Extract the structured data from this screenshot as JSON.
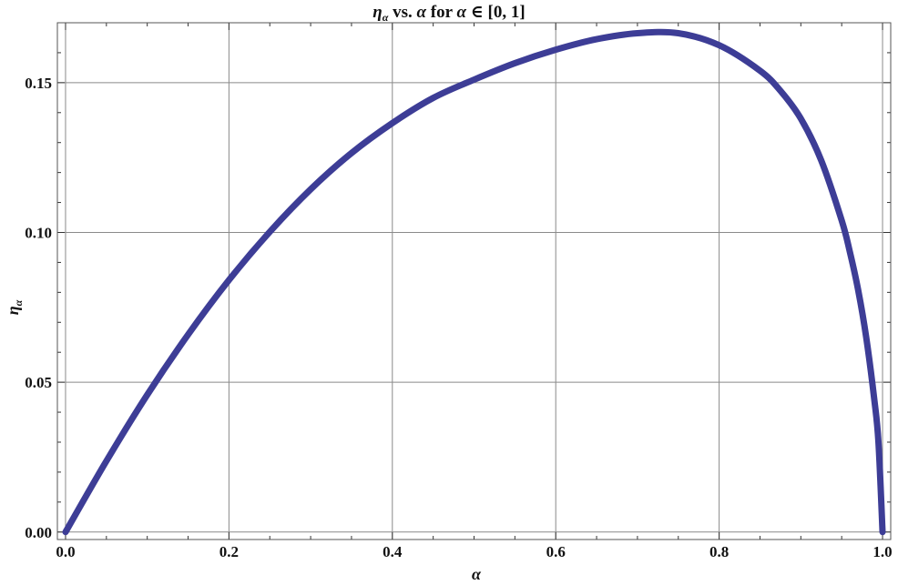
{
  "chart_data": {
    "type": "line",
    "title": {
      "eta": "η",
      "eta_sub": "α",
      "mid": " vs. ",
      "alpha": "α",
      "tail": " for ",
      "alpha2": "α",
      "range": " ∈ [0, 1]"
    },
    "xlabel": "α",
    "ylabel": {
      "main": "η",
      "sub": "α"
    },
    "xlim": [
      -0.01,
      1.01
    ],
    "ylim": [
      -0.0025,
      0.17
    ],
    "x_ticks": [
      0.0,
      0.2,
      0.4,
      0.6,
      0.8,
      1.0
    ],
    "x_tick_labels": [
      "0.0",
      "0.2",
      "0.4",
      "0.6",
      "0.8",
      "1.0"
    ],
    "y_ticks": [
      0.0,
      0.05,
      0.1,
      0.15
    ],
    "y_tick_labels": [
      "0.00",
      "0.05",
      "0.10",
      "0.15"
    ],
    "grid": true,
    "line_color": "#3d3d96",
    "series": [
      {
        "x": [
          0.0,
          0.05,
          0.1,
          0.15,
          0.2,
          0.25,
          0.3,
          0.35,
          0.4,
          0.45,
          0.5,
          0.55,
          0.6,
          0.65,
          0.7,
          0.75,
          0.8,
          0.85,
          0.875,
          0.9,
          0.925,
          0.95,
          0.96,
          0.97,
          0.98,
          0.99,
          0.995,
          1.0
        ],
        "y": [
          0.0,
          0.0237,
          0.0458,
          0.0659,
          0.0841,
          0.1002,
          0.1144,
          0.1265,
          0.1365,
          0.1449,
          0.151,
          0.1565,
          0.161,
          0.1645,
          0.1665,
          0.1665,
          0.1625,
          0.154,
          0.1473,
          0.138,
          0.124,
          0.104,
          0.0935,
          0.081,
          0.065,
          0.044,
          0.03,
          0.0
        ]
      }
    ]
  }
}
